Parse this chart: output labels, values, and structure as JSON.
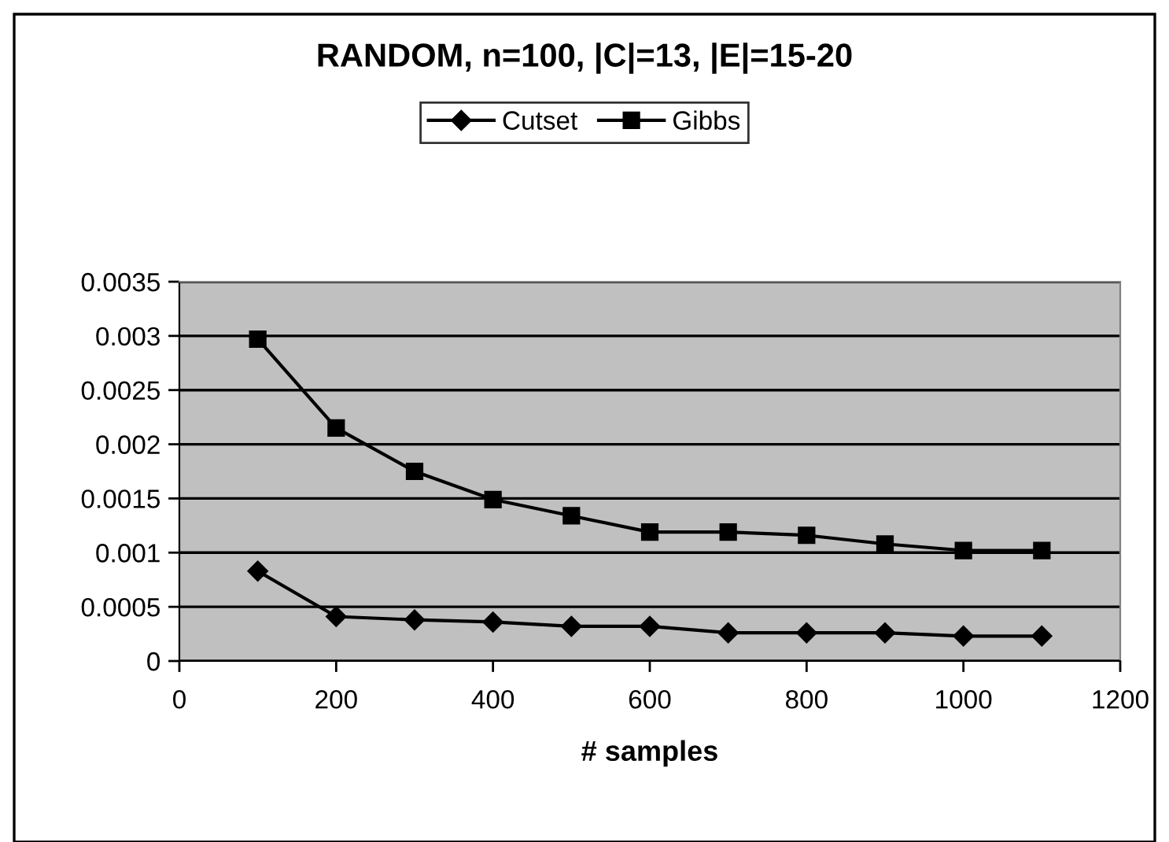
{
  "chart_data": {
    "type": "line",
    "title": "RANDOM, n=100, |C|=13, |E|=15-20",
    "xlabel": "# samples",
    "x": [
      100,
      200,
      300,
      400,
      500,
      600,
      700,
      800,
      900,
      1000,
      1100
    ],
    "series": [
      {
        "name": "Cutset",
        "color": "#000000",
        "marker": "diamond",
        "values": [
          0.00083,
          0.00041,
          0.00038,
          0.00036,
          0.00032,
          0.00032,
          0.00026,
          0.00026,
          0.00026,
          0.00023,
          0.00023
        ]
      },
      {
        "name": "Gibbs",
        "color": "#000000",
        "marker": "square",
        "values": [
          0.00297,
          0.00215,
          0.00175,
          0.00149,
          0.00134,
          0.00119,
          0.00119,
          0.00116,
          0.00108,
          0.00102,
          0.00102
        ]
      }
    ],
    "xlim": [
      0,
      1200
    ],
    "xticks": [
      0,
      200,
      400,
      600,
      800,
      1000,
      1200
    ],
    "ylim": [
      0,
      0.0035
    ],
    "yticks": [
      {
        "value": 0,
        "label": "0"
      },
      {
        "value": 0.0005,
        "label": "0.0005"
      },
      {
        "value": 0.001,
        "label": "0.001"
      },
      {
        "value": 0.0015,
        "label": "0.0015"
      },
      {
        "value": 0.002,
        "label": "0.002"
      },
      {
        "value": 0.0025,
        "label": "0.0025"
      },
      {
        "value": 0.003,
        "label": "0.003"
      },
      {
        "value": 0.0035,
        "label": "0.0035"
      }
    ],
    "grid": "y",
    "legend": "top",
    "line_style": "solid"
  }
}
